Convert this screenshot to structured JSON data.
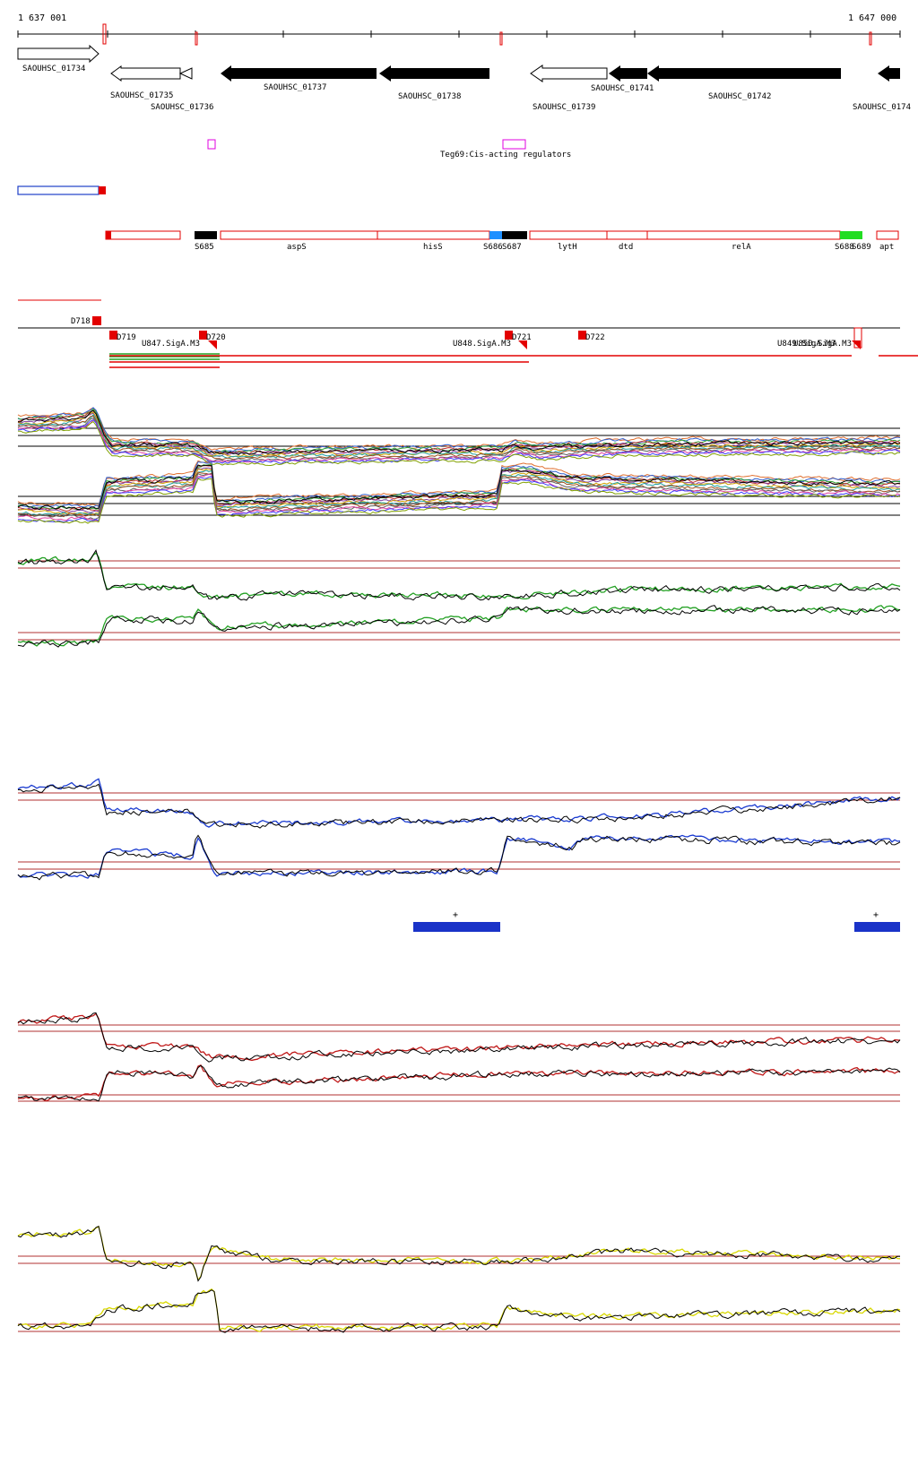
{
  "coords": {
    "start": "1 637 001",
    "end": "1 647 000"
  },
  "genes": [
    "SAOUHSC_01734",
    "SAOUHSC_01735",
    "SAOUHSC_01736",
    "SAOUHSC_01737",
    "SAOUHSC_01738",
    "SAOUHSC_01739",
    "SAOUHSC_01741",
    "SAOUHSC_01742",
    "SAOUHSC_0174"
  ],
  "regulator_label": "Teg69:Cis-acting regulators",
  "segments": [
    "S685",
    "aspS",
    "hisS",
    "S686",
    "S687",
    "lytH",
    "dtd",
    "relA",
    "S688",
    "S689",
    "apt"
  ],
  "features": [
    "D718",
    "D719",
    "D720",
    "D721",
    "D722",
    "U847.SigA.M3",
    "U848.SigA.M3",
    "U849.SigA.M3",
    "U850.SigA.M3"
  ],
  "plus_labels": [
    "+",
    "+"
  ],
  "colors": {
    "gene_fill": "#000000",
    "segment": "#e30000",
    "magenta": "#e000e0",
    "blue_box": "#1f3fc7",
    "green": "#22a022",
    "blue_trace": "#1a3bd0",
    "red_trace": "#c01818",
    "yellow_trace": "#d8d800"
  }
}
